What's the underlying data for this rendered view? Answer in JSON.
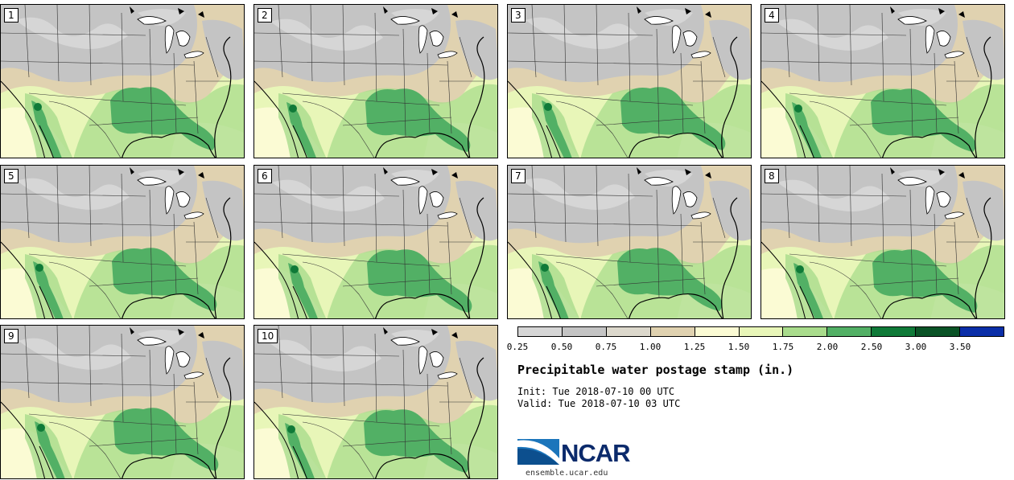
{
  "title": "Precipitable water postage stamp (in.)",
  "init_line": "Init: Tue 2018-07-10 00 UTC",
  "valid_line": "Valid: Tue 2018-07-10 03 UTC",
  "logo_text": "NCAR",
  "logo_url": "ensemble.ucar.edu",
  "members": [
    {
      "label": "1"
    },
    {
      "label": "2"
    },
    {
      "label": "3"
    },
    {
      "label": "4"
    },
    {
      "label": "5"
    },
    {
      "label": "6"
    },
    {
      "label": "7"
    },
    {
      "label": "8"
    },
    {
      "label": "9"
    },
    {
      "label": "10"
    }
  ],
  "colorbar": {
    "tick_labels": [
      "0.25",
      "0.50",
      "0.75",
      "1.00",
      "1.25",
      "1.50",
      "1.75",
      "2.00",
      "2.50",
      "3.00",
      "3.50"
    ],
    "colors": [
      "#d6d6d6",
      "#c4c4c4",
      "#dcd8cc",
      "#e0d2b0",
      "#fbfbd4",
      "#e8f6b8",
      "#a9dc8c",
      "#52b065",
      "#0f7a38",
      "#0a5326",
      "#0a2ea8"
    ]
  },
  "map_colors": {
    "land_base": "#e8f6b8",
    "dry_grey": "#c4c4c4",
    "light_grey": "#d6d6d6",
    "tan": "#e0d2b0",
    "cream": "#fbfbd4",
    "light_green": "#a9dc8c",
    "mid_green": "#52b065",
    "dark_green": "#0f7a38",
    "borders": "#333333"
  }
}
